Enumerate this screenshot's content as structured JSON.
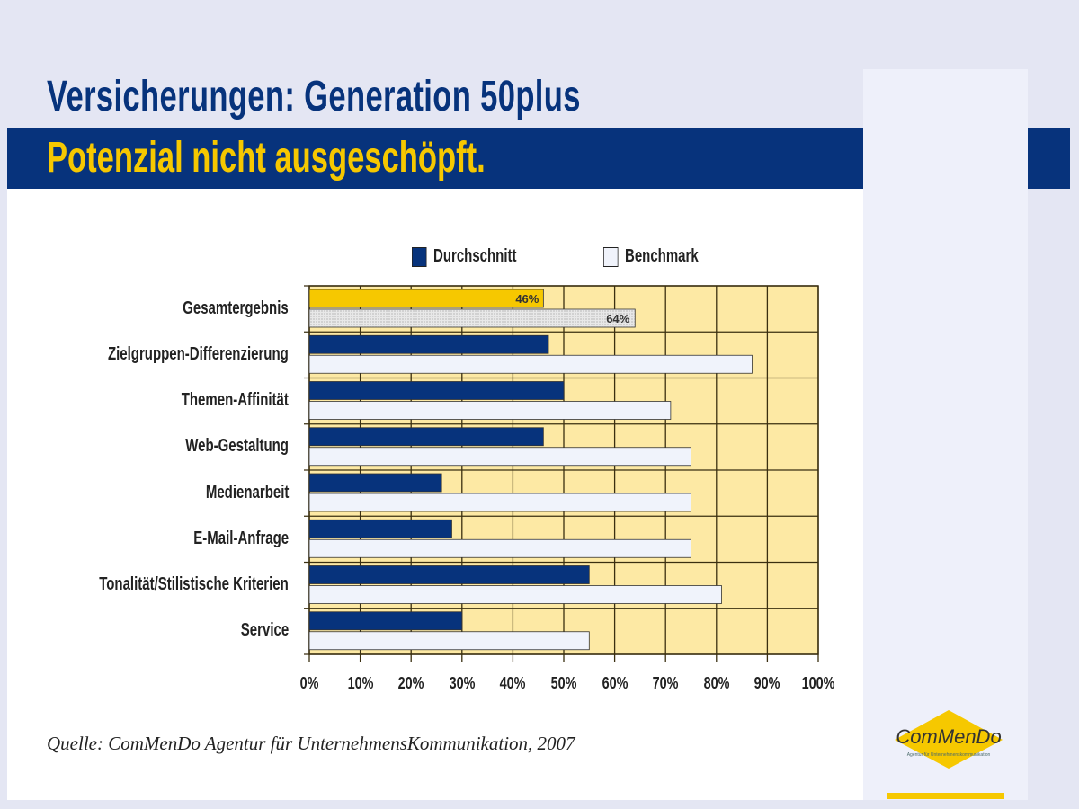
{
  "header": {
    "title": "Versicherungen: Generation 50plus",
    "subtitle": "Potenzial nicht ausgeschöpft."
  },
  "colors": {
    "navy": "#07337c",
    "yellow": "#f6c800",
    "plot_bg": "#fde9a4",
    "benchmark": "#f0f3fb",
    "total_avg": "#f6c800",
    "total_bench": "#dcdcdc"
  },
  "chart_data": {
    "type": "bar",
    "orientation": "horizontal",
    "categories": [
      "Gesamtergebnis",
      "Zielgruppen-Differenzierung",
      "Themen-Affinität",
      "Web-Gestaltung",
      "Medienarbeit",
      "E-Mail-Anfrage",
      "Tonalität/Stilistische Kriterien",
      "Service"
    ],
    "series": [
      {
        "name": "Durchschnitt",
        "values": [
          46,
          47,
          50,
          46,
          26,
          28,
          55,
          30
        ]
      },
      {
        "name": "Benchmark",
        "values": [
          64,
          87,
          71,
          75,
          75,
          75,
          81,
          55
        ]
      }
    ],
    "data_labels": {
      "Gesamtergebnis": [
        "46%",
        "64%"
      ]
    },
    "xlim": [
      0,
      100
    ],
    "x_ticks": [
      "0%",
      "10%",
      "20%",
      "30%",
      "40%",
      "50%",
      "60%",
      "70%",
      "80%",
      "90%",
      "100%"
    ],
    "grid": true,
    "legend": "top"
  },
  "source": "Quelle: ComMenDo Agentur für UnternehmensKommunikation, 2007",
  "logo": {
    "text": "COMMENDO",
    "tagline": "Agentur für Unternehmenskommunikation"
  }
}
